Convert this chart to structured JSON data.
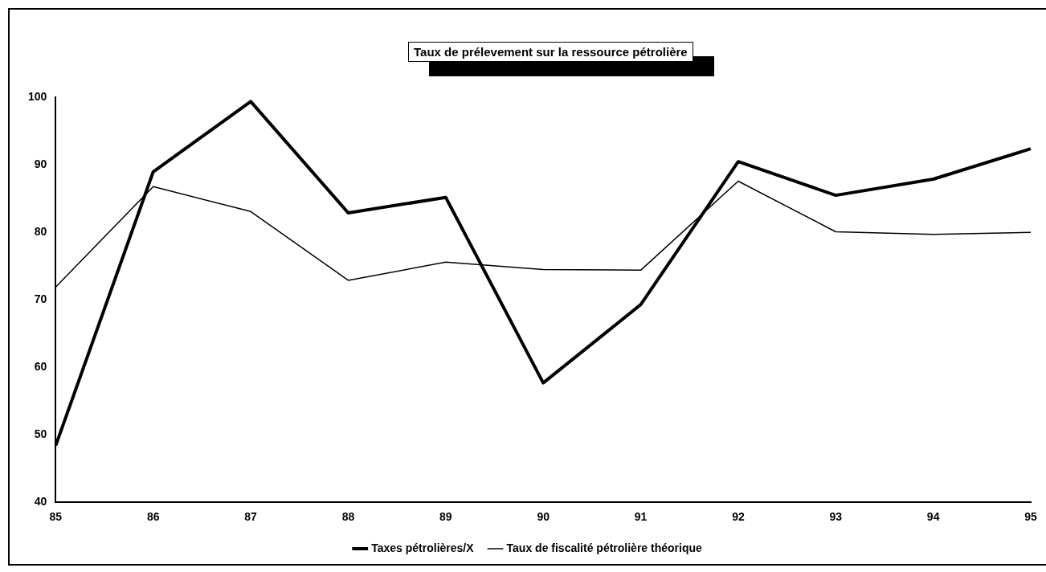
{
  "chart_data": {
    "type": "line",
    "title": "Taux de prélevement sur la ressource pétrolière",
    "categories": [
      "85",
      "86",
      "87",
      "88",
      "89",
      "90",
      "91",
      "92",
      "93",
      "94",
      "95"
    ],
    "series": [
      {
        "name": "Taxes pétrolières/X",
        "color": "#000000",
        "values": [
          48.4,
          89.0,
          99.4,
          82.9,
          85.2,
          57.7,
          69.3,
          90.5,
          85.5,
          87.9,
          92.4
        ]
      },
      {
        "name": "Taux de fiscalité pétrolière théorique",
        "color": "#000000",
        "values": [
          71.9,
          86.8,
          83.1,
          72.9,
          75.6,
          74.5,
          74.4,
          87.6,
          80.1,
          79.7,
          80.0
        ]
      }
    ],
    "ylim": [
      40,
      100
    ],
    "yticks": [
      40,
      50,
      60,
      70,
      80,
      90,
      100
    ],
    "grid": false,
    "legend": "bottom",
    "marker": "none",
    "line_style": "solid"
  }
}
